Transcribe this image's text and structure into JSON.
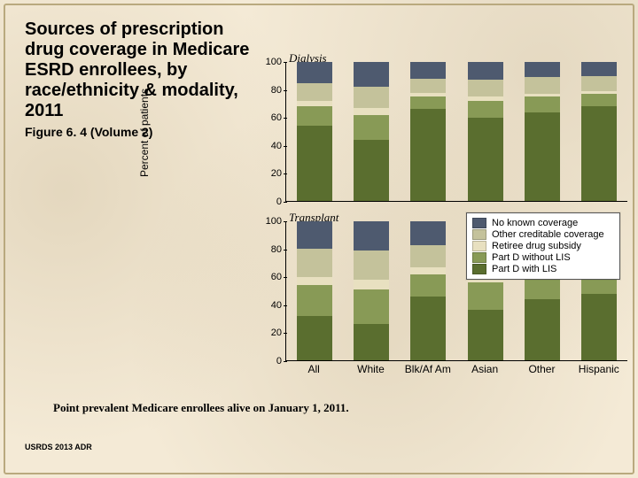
{
  "title": "Sources of prescription drug coverage in Medicare ESRD enrollees, by race/ethnicity & modality, 2011",
  "title_fontsize": 20,
  "subtitle": "Figure 6. 4 (Volume 2)",
  "subtitle_fontsize": 14,
  "footnote": "Point prevalent Medicare enrollees alive on January 1, 2011.",
  "footnote_fontsize": 13,
  "footer": "USRDS 2013 ADR",
  "footer_fontsize": 9,
  "background_color": "#f4ead6",
  "chart": {
    "ylabel": "Percent of patients",
    "ylabel_fontsize": 12,
    "ylim": [
      0,
      100
    ],
    "ytick_step": 20,
    "tick_fontsize": 11,
    "panel_title_fontsize": 13,
    "xlabel_fontsize": 12,
    "categories": [
      "All",
      "White",
      "Blk/Af Am",
      "Asian",
      "Other",
      "Hispanic"
    ],
    "series_order": [
      "partd_lis",
      "partd_no_lis",
      "retiree",
      "other_cred",
      "no_known"
    ],
    "colors": {
      "no_known": "#4e5a6f",
      "other_cred": "#c4c29b",
      "retiree": "#e8e0c0",
      "partd_no_lis": "#889a56",
      "partd_lis": "#5a6e2f"
    },
    "legend": {
      "fontsize": 11,
      "items": [
        {
          "key": "no_known",
          "label": "No known coverage"
        },
        {
          "key": "other_cred",
          "label": "Other creditable coverage"
        },
        {
          "key": "retiree",
          "label": "Retiree drug subsidy"
        },
        {
          "key": "partd_no_lis",
          "label": "Part D without LIS"
        },
        {
          "key": "partd_lis",
          "label": "Part D with LIS"
        }
      ]
    },
    "panels": [
      {
        "title": "Dialysis",
        "data": {
          "All": {
            "partd_lis": 54,
            "partd_no_lis": 14,
            "retiree": 4,
            "other_cred": 13,
            "no_known": 15
          },
          "White": {
            "partd_lis": 44,
            "partd_no_lis": 18,
            "retiree": 5,
            "other_cred": 15,
            "no_known": 18
          },
          "Blk/Af Am": {
            "partd_lis": 66,
            "partd_no_lis": 9,
            "retiree": 3,
            "other_cred": 10,
            "no_known": 12
          },
          "Asian": {
            "partd_lis": 60,
            "partd_no_lis": 12,
            "retiree": 3,
            "other_cred": 12,
            "no_known": 13
          },
          "Other": {
            "partd_lis": 64,
            "partd_no_lis": 11,
            "retiree": 2,
            "other_cred": 12,
            "no_known": 11
          },
          "Hispanic": {
            "partd_lis": 68,
            "partd_no_lis": 9,
            "retiree": 2,
            "other_cred": 11,
            "no_known": 10
          }
        }
      },
      {
        "title": "Transplant",
        "data": {
          "All": {
            "partd_lis": 32,
            "partd_no_lis": 22,
            "retiree": 6,
            "other_cred": 20,
            "no_known": 20
          },
          "White": {
            "partd_lis": 26,
            "partd_no_lis": 25,
            "retiree": 7,
            "other_cred": 21,
            "no_known": 21
          },
          "Blk/Af Am": {
            "partd_lis": 46,
            "partd_no_lis": 16,
            "retiree": 5,
            "other_cred": 16,
            "no_known": 17
          },
          "Asian": {
            "partd_lis": 36,
            "partd_no_lis": 20,
            "retiree": 5,
            "other_cred": 20,
            "no_known": 19
          },
          "Other": {
            "partd_lis": 44,
            "partd_no_lis": 17,
            "retiree": 4,
            "other_cred": 18,
            "no_known": 17
          },
          "Hispanic": {
            "partd_lis": 48,
            "partd_no_lis": 16,
            "retiree": 3,
            "other_cred": 17,
            "no_known": 16
          }
        }
      }
    ]
  }
}
